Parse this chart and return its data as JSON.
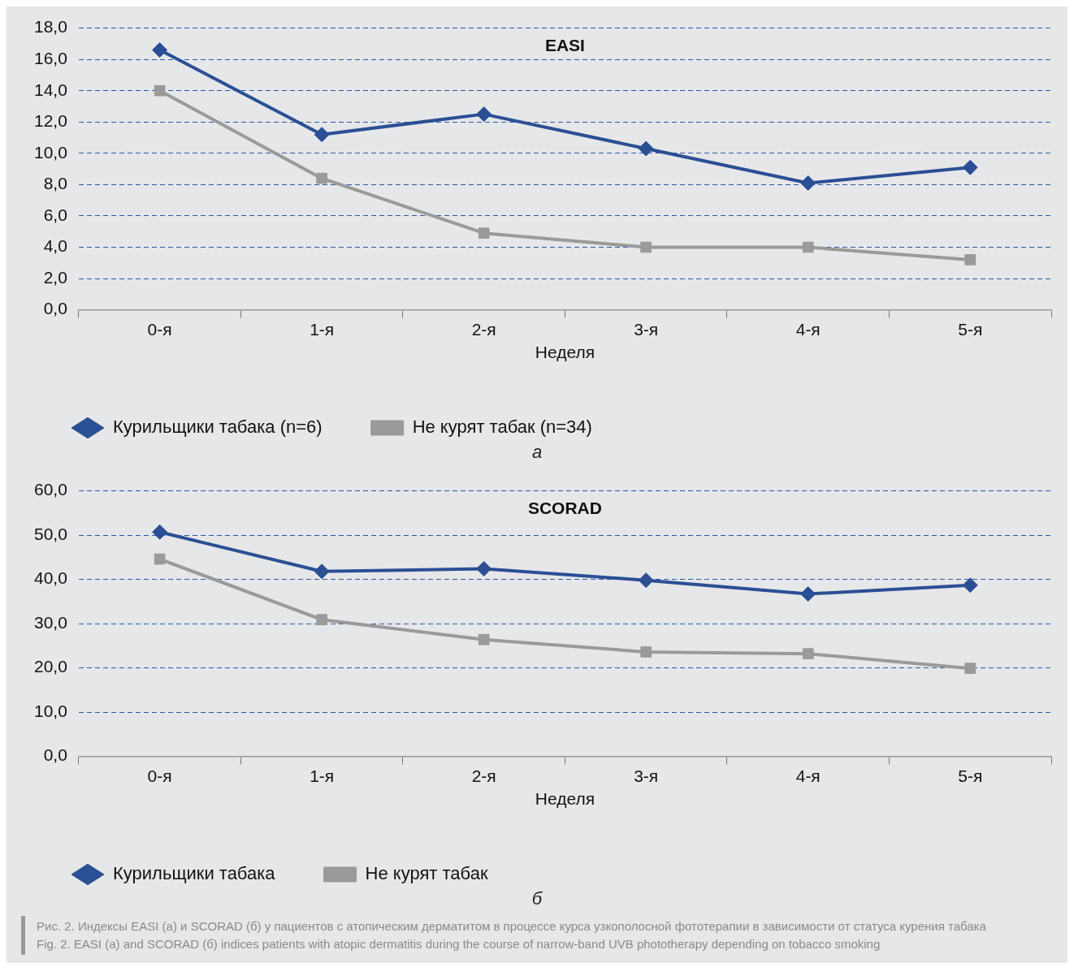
{
  "chart_data": [
    {
      "type": "line",
      "title": "EASI",
      "xlabel": "Неделя",
      "categories": [
        "0-я",
        "1-я",
        "2-я",
        "3-я",
        "4-я",
        "5-я"
      ],
      "series": [
        {
          "name": "Курильщики табака (n=6)",
          "color": "#2b4f94",
          "marker": "diamond",
          "values": [
            16.6,
            11.2,
            12.5,
            10.3,
            8.1,
            9.1
          ]
        },
        {
          "name": "Не курят табак (n=34)",
          "color": "#9a9a9a",
          "marker": "square",
          "values": [
            14.0,
            8.4,
            4.9,
            4.0,
            4.0,
            3.2
          ]
        }
      ],
      "ylim": [
        0,
        18
      ],
      "yticks": [
        {
          "value": 0,
          "label": "0,0"
        },
        {
          "value": 2,
          "label": "2,0"
        },
        {
          "value": 4,
          "label": "4,0"
        },
        {
          "value": 6,
          "label": "6,0"
        },
        {
          "value": 8,
          "label": "8,0"
        },
        {
          "value": 10,
          "label": "10,0"
        },
        {
          "value": 12,
          "label": "12,0"
        },
        {
          "value": 14,
          "label": "14,0"
        },
        {
          "value": 16,
          "label": "16,0"
        },
        {
          "value": 18,
          "label": "18,0"
        }
      ],
      "grid": "y",
      "legend": "bottom left",
      "line_style": "solid",
      "annotations": [
        "а"
      ]
    },
    {
      "type": "line",
      "title": "SCORAD",
      "xlabel": "Неделя",
      "categories": [
        "0-я",
        "1-я",
        "2-я",
        "3-я",
        "4-я",
        "5-я"
      ],
      "series": [
        {
          "name": "Курильщики табака",
          "color": "#2b4f94",
          "marker": "diamond",
          "values": [
            50.7,
            41.8,
            42.4,
            39.8,
            36.7,
            38.7
          ]
        },
        {
          "name": "Не курят табак",
          "color": "#9a9a9a",
          "marker": "square",
          "values": [
            44.6,
            30.9,
            26.4,
            23.6,
            23.2,
            19.9
          ]
        }
      ],
      "ylim": [
        0,
        60
      ],
      "yticks": [
        {
          "value": 0,
          "label": "0,0"
        },
        {
          "value": 10,
          "label": "10,0"
        },
        {
          "value": 20,
          "label": "20,0"
        },
        {
          "value": 30,
          "label": "30,0"
        },
        {
          "value": 40,
          "label": "40,0"
        },
        {
          "value": 50,
          "label": "50,0"
        },
        {
          "value": 60,
          "label": "60,0"
        }
      ],
      "grid": "y",
      "legend": "bottom left",
      "line_style": "solid",
      "annotations": [
        "б",
        "Рис. 2. Индексы EASI (а) и SCORAD (б) у пациентов с атопическим дерматитом в процессе курса узкополосной фототерапии в зависимости от статуса курения табака",
        "Fig. 2. EASI (a) and SCORAD (б) indices patients with atopic dermatitis during the course of narrow-band UVB phototherapy depending on tobacco smoking"
      ]
    }
  ]
}
